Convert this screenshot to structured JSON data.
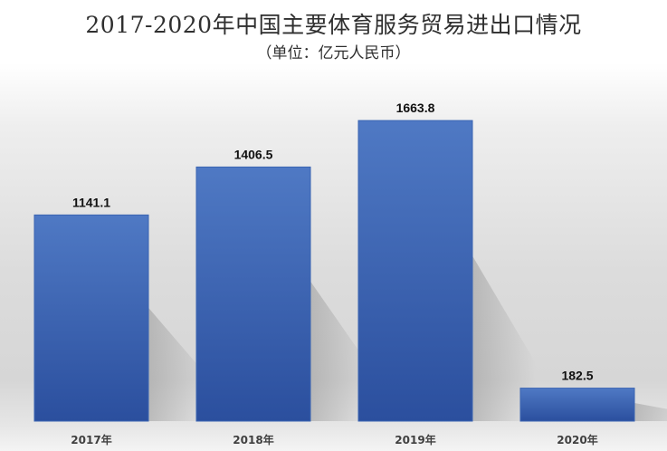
{
  "chart_data": {
    "type": "bar",
    "title": "2017-2020年中国主要体育服务贸易进出口情况",
    "subtitle": "（单位：亿元人民币）",
    "categories": [
      "2017年",
      "2018年",
      "2019年",
      "2020年"
    ],
    "values": [
      1141.1,
      1406.5,
      1663.8,
      182.5
    ],
    "value_labels": [
      "1141.1",
      "1406.5",
      "1663.8",
      "182.5"
    ],
    "ylim": [
      0,
      1930
    ],
    "grid": false,
    "legend": "none",
    "colors": {
      "bar_top": "#4f79c4",
      "bar_bottom": "#2b4f9e",
      "bar_border": "#3a64b2"
    }
  }
}
